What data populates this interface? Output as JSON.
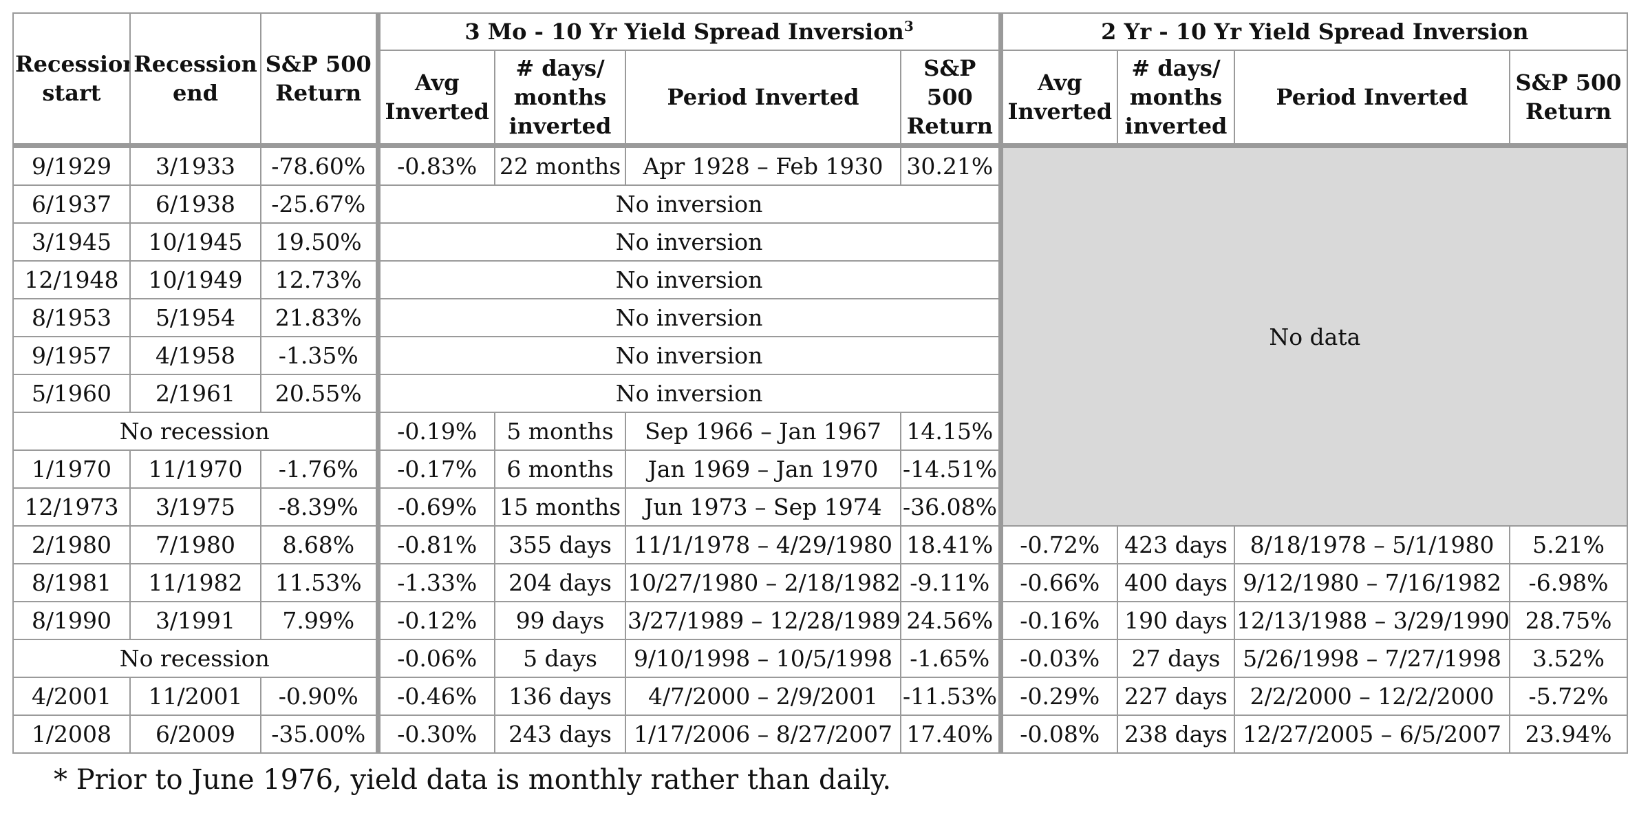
{
  "headers": {
    "recession_start": "Recession start",
    "recession_end": "Recession end",
    "sp500_return": "S&P 500 Return",
    "group_3mo": "3 Mo - 10 Yr Yield Spread Inversion",
    "group_3mo_sup": "3",
    "group_2yr": "2 Yr - 10 Yr Yield Spread Inversion",
    "avg_inverted": "Avg Inverted",
    "days_months_inverted": "# days/ months inverted",
    "period_inverted": "Period Inverted",
    "sp_return_col": "S&P 500 Return"
  },
  "no_inversion": "No inversion",
  "no_recession": "No recession",
  "no_data": "No data",
  "rows": [
    {
      "start": "9/1929",
      "end": "3/1933",
      "ret": "-78.60%",
      "a_avg": "-0.83%",
      "a_dur": "22 months",
      "a_period": "Apr 1928 – Feb 1930",
      "a_ret": "30.21%"
    },
    {
      "start": "6/1937",
      "end": "6/1938",
      "ret": "-25.67%"
    },
    {
      "start": "3/1945",
      "end": "10/1945",
      "ret": "19.50%"
    },
    {
      "start": "12/1948",
      "end": "10/1949",
      "ret": "12.73%"
    },
    {
      "start": "8/1953",
      "end": "5/1954",
      "ret": "21.83%"
    },
    {
      "start": "9/1957",
      "end": "4/1958",
      "ret": "-1.35%"
    },
    {
      "start": "5/1960",
      "end": "2/1961",
      "ret": "20.55%"
    },
    {
      "a_avg": "-0.19%",
      "a_dur": "5 months",
      "a_period": "Sep 1966 – Jan 1967",
      "a_ret": "14.15%"
    },
    {
      "start": "1/1970",
      "end": "11/1970",
      "ret": "-1.76%",
      "a_avg": "-0.17%",
      "a_dur": "6 months",
      "a_period": "Jan 1969 – Jan 1970",
      "a_ret": "-14.51%"
    },
    {
      "start": "12/1973",
      "end": "3/1975",
      "ret": "-8.39%",
      "a_avg": "-0.69%",
      "a_dur": "15 months",
      "a_period": "Jun 1973 – Sep 1974",
      "a_ret": "-36.08%"
    },
    {
      "start": "2/1980",
      "end": "7/1980",
      "ret": "8.68%",
      "a_avg": "-0.81%",
      "a_dur": "355 days",
      "a_period": "11/1/1978 – 4/29/1980",
      "a_ret": "18.41%",
      "b_avg": "-0.72%",
      "b_dur": "423 days",
      "b_period": "8/18/1978 – 5/1/1980",
      "b_ret": "5.21%"
    },
    {
      "start": "8/1981",
      "end": "11/1982",
      "ret": "11.53%",
      "a_avg": "-1.33%",
      "a_dur": "204 days",
      "a_period": "10/27/1980 – 2/18/1982",
      "a_ret": "-9.11%",
      "b_avg": "-0.66%",
      "b_dur": "400 days",
      "b_period": "9/12/1980 – 7/16/1982",
      "b_ret": "-6.98%"
    },
    {
      "start": "8/1990",
      "end": "3/1991",
      "ret": "7.99%",
      "a_avg": "-0.12%",
      "a_dur": "99 days",
      "a_period": "3/27/1989 – 12/28/1989",
      "a_ret": "24.56%",
      "b_avg": "-0.16%",
      "b_dur": "190 days",
      "b_period": "12/13/1988 – 3/29/1990",
      "b_ret": "28.75%"
    },
    {
      "a_avg": "-0.06%",
      "a_dur": "5 days",
      "a_period": "9/10/1998 – 10/5/1998",
      "a_ret": "-1.65%",
      "b_avg": "-0.03%",
      "b_dur": "27 days",
      "b_period": "5/26/1998 – 7/27/1998",
      "b_ret": "3.52%"
    },
    {
      "start": "4/2001",
      "end": "11/2001",
      "ret": "-0.90%",
      "a_avg": "-0.46%",
      "a_dur": "136 days",
      "a_period": "4/7/2000 – 2/9/2001",
      "a_ret": "-11.53%",
      "b_avg": "-0.29%",
      "b_dur": "227 days",
      "b_period": "2/2/2000 – 12/2/2000",
      "b_ret": "-5.72%"
    },
    {
      "start": "1/2008",
      "end": "6/2009",
      "ret": "-35.00%",
      "a_avg": "-0.30%",
      "a_dur": "243 days",
      "a_period": "1/17/2006 – 8/27/2007",
      "a_ret": "17.40%",
      "b_avg": "-0.08%",
      "b_dur": "238 days",
      "b_period": "12/27/2005 – 6/5/2007",
      "b_ret": "23.94%"
    }
  ],
  "footnote": "* Prior to June 1976, yield data is monthly rather than daily."
}
